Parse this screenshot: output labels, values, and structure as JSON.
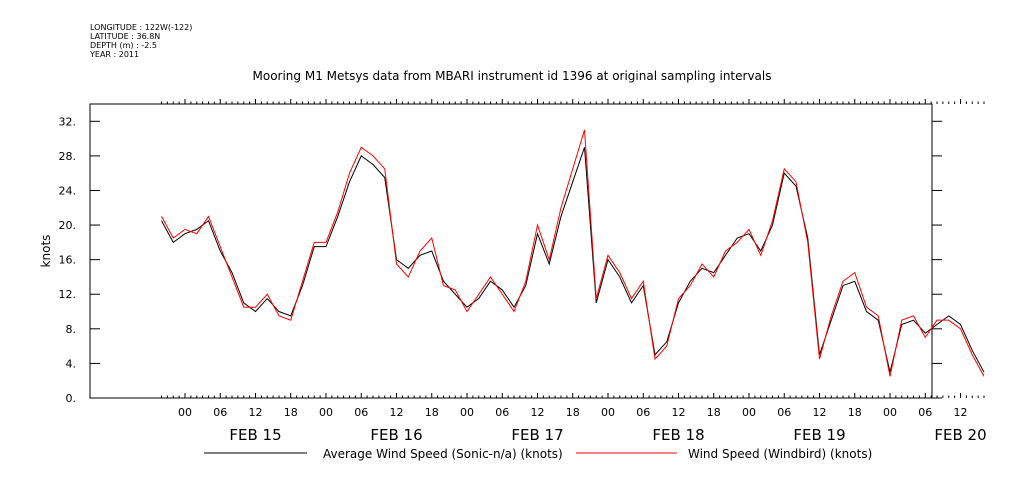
{
  "metadata": {
    "longitude": "LONGITUDE : 122W(-122)",
    "latitude": "LATITUDE : 36.8N",
    "depth": "DEPTH (m) : -2.5",
    "year": "YEAR : 2011"
  },
  "chart_data": {
    "type": "line",
    "title": "Mooring M1 Metsys data from MBARI instrument id 1396 at original sampling intervals",
    "ylabel": "knots",
    "xlabel": "",
    "ylim": [
      0,
      34
    ],
    "y_ticks": [
      0,
      4,
      8,
      12,
      16,
      20,
      24,
      28,
      32
    ],
    "y_tick_labels": [
      "0.",
      "4.",
      "8.",
      "12.",
      "16.",
      "20.",
      "24.",
      "28.",
      "32."
    ],
    "x_range_hours": [
      -20,
      0
    ],
    "x_axis": {
      "start": "FEB 14 20:00",
      "end": "FEB 20 16:00",
      "hour_tick_labels": [
        "00",
        "06",
        "12",
        "18",
        "00",
        "06",
        "12",
        "18",
        "00",
        "06",
        "12",
        "18",
        "00",
        "06",
        "12",
        "18",
        "00",
        "06",
        "12",
        "18",
        "00",
        "06",
        "12"
      ],
      "day_labels": [
        "FEB 15",
        "FEB 16",
        "FEB 17",
        "FEB 18",
        "FEB 19",
        "FEB 20"
      ]
    },
    "grid": false,
    "legend_position": "bottom",
    "series": [
      {
        "name": "Average Wind Speed (Sonic-n/a) (knots)",
        "color": "#000000",
        "points": [
          [
            "FEB 14 20:00",
            20.5
          ],
          [
            "FEB 14 22:00",
            18.0
          ],
          [
            "FEB 15 00:00",
            19.0
          ],
          [
            "FEB 15 02:00",
            19.5
          ],
          [
            "FEB 15 04:00",
            20.5
          ],
          [
            "FEB 15 06:00",
            17.0
          ],
          [
            "FEB 15 08:00",
            14.5
          ],
          [
            "FEB 15 10:00",
            11.0
          ],
          [
            "FEB 15 12:00",
            10.0
          ],
          [
            "FEB 15 14:00",
            11.5
          ],
          [
            "FEB 15 16:00",
            10.0
          ],
          [
            "FEB 15 18:00",
            9.5
          ],
          [
            "FEB 15 20:00",
            13.0
          ],
          [
            "FEB 15 22:00",
            17.5
          ],
          [
            "FEB 16 00:00",
            17.5
          ],
          [
            "FEB 16 02:00",
            21.0
          ],
          [
            "FEB 16 04:00",
            25.0
          ],
          [
            "FEB 16 06:00",
            28.0
          ],
          [
            "FEB 16 08:00",
            27.0
          ],
          [
            "FEB 16 10:00",
            25.5
          ],
          [
            "FEB 16 12:00",
            16.0
          ],
          [
            "FEB 16 14:00",
            15.0
          ],
          [
            "FEB 16 16:00",
            16.5
          ],
          [
            "FEB 16 18:00",
            17.0
          ],
          [
            "FEB 16 20:00",
            13.5
          ],
          [
            "FEB 16 22:00",
            12.0
          ],
          [
            "FEB 17 00:00",
            10.5
          ],
          [
            "FEB 17 02:00",
            11.5
          ],
          [
            "FEB 17 04:00",
            13.5
          ],
          [
            "FEB 17 06:00",
            12.5
          ],
          [
            "FEB 17 08:00",
            10.5
          ],
          [
            "FEB 17 10:00",
            13.0
          ],
          [
            "FEB 17 12:00",
            19.0
          ],
          [
            "FEB 17 14:00",
            15.5
          ],
          [
            "FEB 17 16:00",
            21.0
          ],
          [
            "FEB 17 18:00",
            25.0
          ],
          [
            "FEB 17 20:00",
            29.0
          ],
          [
            "FEB 17 22:00",
            11.0
          ],
          [
            "FEB 18 00:00",
            16.0
          ],
          [
            "FEB 18 02:00",
            14.0
          ],
          [
            "FEB 18 04:00",
            11.0
          ],
          [
            "FEB 18 06:00",
            13.0
          ],
          [
            "FEB 18 08:00",
            5.0
          ],
          [
            "FEB 18 10:00",
            6.5
          ],
          [
            "FEB 18 12:00",
            11.0
          ],
          [
            "FEB 18 14:00",
            13.5
          ],
          [
            "FEB 18 16:00",
            15.0
          ],
          [
            "FEB 18 18:00",
            14.5
          ],
          [
            "FEB 18 20:00",
            16.5
          ],
          [
            "FEB 18 22:00",
            18.5
          ],
          [
            "FEB 19 00:00",
            19.0
          ],
          [
            "FEB 19 02:00",
            17.0
          ],
          [
            "FEB 19 04:00",
            20.0
          ],
          [
            "FEB 19 06:00",
            26.0
          ],
          [
            "FEB 19 08:00",
            24.5
          ],
          [
            "FEB 19 10:00",
            18.5
          ],
          [
            "FEB 19 12:00",
            5.0
          ],
          [
            "FEB 19 14:00",
            9.0
          ],
          [
            "FEB 19 16:00",
            13.0
          ],
          [
            "FEB 19 18:00",
            13.5
          ],
          [
            "FEB 19 20:00",
            10.0
          ],
          [
            "FEB 19 22:00",
            9.0
          ],
          [
            "FEB 20 00:00",
            3.0
          ],
          [
            "FEB 20 02:00",
            8.5
          ],
          [
            "FEB 20 04:00",
            9.0
          ],
          [
            "FEB 20 06:00",
            7.5
          ],
          [
            "FEB 20 08:00",
            8.5
          ],
          [
            "FEB 20 10:00",
            9.5
          ],
          [
            "FEB 20 12:00",
            8.5
          ],
          [
            "FEB 20 14:00",
            5.5
          ],
          [
            "FEB 20 16:00",
            3.0
          ]
        ]
      },
      {
        "name": "Wind Speed (Windbird) (knots)",
        "color": "#ff0000",
        "points": [
          [
            "FEB 14 20:00",
            21.0
          ],
          [
            "FEB 14 22:00",
            18.5
          ],
          [
            "FEB 15 00:00",
            19.5
          ],
          [
            "FEB 15 02:00",
            19.0
          ],
          [
            "FEB 15 04:00",
            21.0
          ],
          [
            "FEB 15 06:00",
            17.5
          ],
          [
            "FEB 15 08:00",
            14.0
          ],
          [
            "FEB 15 10:00",
            10.5
          ],
          [
            "FEB 15 12:00",
            10.5
          ],
          [
            "FEB 15 14:00",
            12.0
          ],
          [
            "FEB 15 16:00",
            9.5
          ],
          [
            "FEB 15 18:00",
            9.0
          ],
          [
            "FEB 15 20:00",
            13.5
          ],
          [
            "FEB 15 22:00",
            18.0
          ],
          [
            "FEB 16 00:00",
            18.0
          ],
          [
            "FEB 16 02:00",
            21.5
          ],
          [
            "FEB 16 04:00",
            26.0
          ],
          [
            "FEB 16 06:00",
            29.0
          ],
          [
            "FEB 16 08:00",
            28.0
          ],
          [
            "FEB 16 10:00",
            26.5
          ],
          [
            "FEB 16 12:00",
            15.5
          ],
          [
            "FEB 16 14:00",
            14.0
          ],
          [
            "FEB 16 16:00",
            17.0
          ],
          [
            "FEB 16 18:00",
            18.5
          ],
          [
            "FEB 16 20:00",
            13.0
          ],
          [
            "FEB 16 22:00",
            12.5
          ],
          [
            "FEB 17 00:00",
            10.0
          ],
          [
            "FEB 17 02:00",
            12.0
          ],
          [
            "FEB 17 04:00",
            14.0
          ],
          [
            "FEB 17 06:00",
            12.0
          ],
          [
            "FEB 17 08:00",
            10.0
          ],
          [
            "FEB 17 10:00",
            13.5
          ],
          [
            "FEB 17 12:00",
            20.0
          ],
          [
            "FEB 17 14:00",
            16.0
          ],
          [
            "FEB 17 16:00",
            22.0
          ],
          [
            "FEB 17 18:00",
            26.5
          ],
          [
            "FEB 17 20:00",
            31.0
          ],
          [
            "FEB 17 22:00",
            11.5
          ],
          [
            "FEB 18 00:00",
            16.5
          ],
          [
            "FEB 18 02:00",
            14.5
          ],
          [
            "FEB 18 04:00",
            11.5
          ],
          [
            "FEB 18 06:00",
            13.5
          ],
          [
            "FEB 18 08:00",
            4.5
          ],
          [
            "FEB 18 10:00",
            6.0
          ],
          [
            "FEB 18 12:00",
            11.5
          ],
          [
            "FEB 18 14:00",
            13.0
          ],
          [
            "FEB 18 16:00",
            15.5
          ],
          [
            "FEB 18 18:00",
            14.0
          ],
          [
            "FEB 18 20:00",
            17.0
          ],
          [
            "FEB 18 22:00",
            18.0
          ],
          [
            "FEB 19 00:00",
            19.5
          ],
          [
            "FEB 19 02:00",
            16.5
          ],
          [
            "FEB 19 04:00",
            20.5
          ],
          [
            "FEB 19 06:00",
            26.5
          ],
          [
            "FEB 19 08:00",
            25.0
          ],
          [
            "FEB 19 10:00",
            18.0
          ],
          [
            "FEB 19 12:00",
            4.5
          ],
          [
            "FEB 19 14:00",
            9.5
          ],
          [
            "FEB 19 16:00",
            13.5
          ],
          [
            "FEB 19 18:00",
            14.5
          ],
          [
            "FEB 19 20:00",
            10.5
          ],
          [
            "FEB 19 22:00",
            9.5
          ],
          [
            "FEB 20 00:00",
            2.5
          ],
          [
            "FEB 20 02:00",
            9.0
          ],
          [
            "FEB 20 04:00",
            9.5
          ],
          [
            "FEB 20 06:00",
            7.0
          ],
          [
            "FEB 20 08:00",
            9.0
          ],
          [
            "FEB 20 10:00",
            9.0
          ],
          [
            "FEB 20 12:00",
            8.0
          ],
          [
            "FEB 20 14:00",
            5.0
          ],
          [
            "FEB 20 16:00",
            2.5
          ]
        ]
      }
    ]
  }
}
